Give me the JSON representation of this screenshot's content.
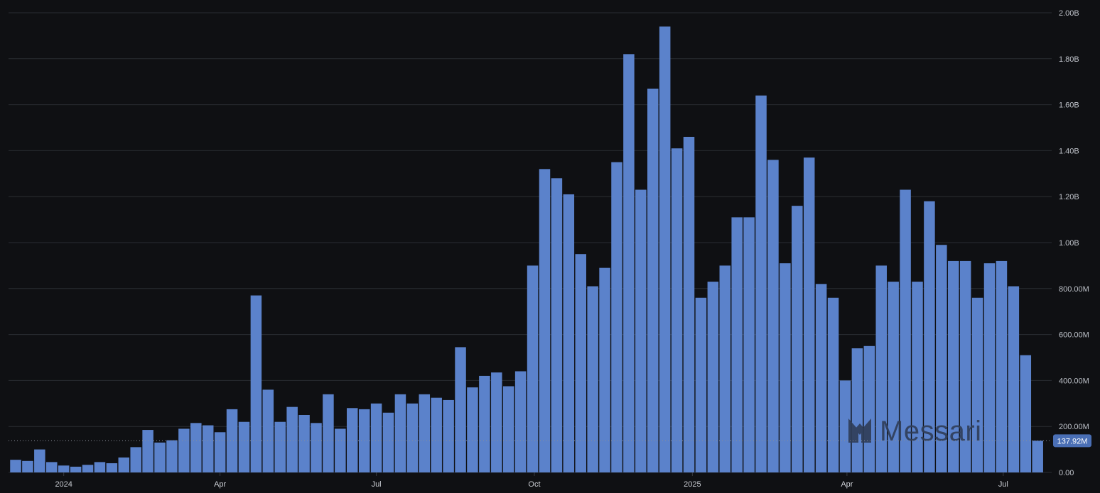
{
  "chart_data": {
    "type": "bar",
    "x_tick_labels": [
      "2024",
      "Apr",
      "Jul",
      "Oct",
      "2025",
      "Apr",
      "Jul"
    ],
    "y_tick_labels": [
      "0.00",
      "200.00M",
      "400.00M",
      "600.00M",
      "800.00M",
      "1.00B",
      "1.20B",
      "1.40B",
      "1.60B",
      "1.80B",
      "2.00B"
    ],
    "ylim": [
      0,
      2000000000
    ],
    "y_ticks": [
      0,
      200000000,
      400000000,
      600000000,
      800000000,
      1000000000,
      1200000000,
      1400000000,
      1600000000,
      1800000000,
      2000000000
    ],
    "grid": true,
    "y_axis_side": "right",
    "bar_color": "#5b82cb",
    "last_value_label": "137.92M",
    "last_value": 137920000,
    "x_start": "2023-12-04",
    "interval": "weekly",
    "x_tick_dates": [
      "2024-01-01",
      "2024-04-01",
      "2024-07-01",
      "2024-10-01",
      "2025-01-01",
      "2025-04-01",
      "2025-07-01"
    ],
    "values": [
      55000000,
      50000000,
      100000000,
      45000000,
      30000000,
      25000000,
      33000000,
      45000000,
      40000000,
      65000000,
      110000000,
      185000000,
      130000000,
      140000000,
      190000000,
      215000000,
      205000000,
      175000000,
      275000000,
      220000000,
      770000000,
      360000000,
      220000000,
      285000000,
      250000000,
      215000000,
      340000000,
      190000000,
      280000000,
      275000000,
      300000000,
      260000000,
      340000000,
      300000000,
      340000000,
      325000000,
      315000000,
      545000000,
      370000000,
      420000000,
      435000000,
      375000000,
      440000000,
      900000000,
      1320000000,
      1280000000,
      1210000000,
      950000000,
      810000000,
      890000000,
      1350000000,
      1820000000,
      1230000000,
      1670000000,
      1940000000,
      1410000000,
      1460000000,
      760000000,
      830000000,
      900000000,
      1110000000,
      1110000000,
      1640000000,
      1360000000,
      910000000,
      1160000000,
      1370000000,
      820000000,
      760000000,
      400000000,
      540000000,
      550000000,
      900000000,
      830000000,
      1230000000,
      830000000,
      1180000000,
      990000000,
      920000000,
      920000000,
      760000000,
      910000000,
      920000000,
      810000000,
      510000000,
      137920000
    ]
  },
  "watermark": {
    "brand": "Messari"
  },
  "colors": {
    "background": "#0f1013",
    "grid": "#2a2d33",
    "bar": "#5b82cb",
    "badge": "#4a6fb5",
    "watermark": "#2f3d57"
  }
}
